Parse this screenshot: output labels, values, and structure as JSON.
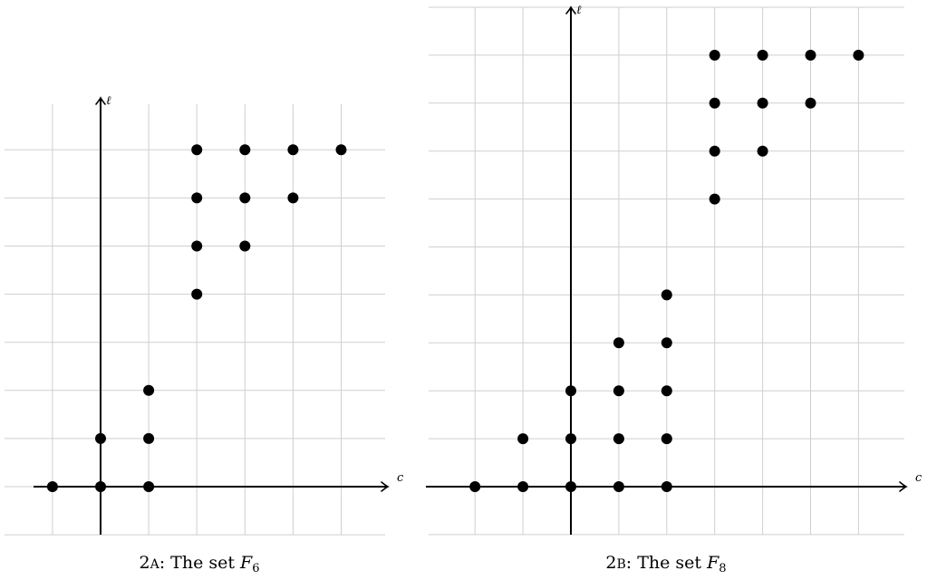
{
  "chart_data": [
    {
      "type": "scatter",
      "caption": {
        "prefix": "2",
        "tag": "A",
        "text": ": The set ",
        "set": "F",
        "sub": "6"
      },
      "xlabel": "c",
      "ylabel": "ℓ",
      "xlim": [
        -1,
        6
      ],
      "ylim": [
        -1,
        8
      ],
      "grid": true,
      "points": [
        [
          -1,
          0
        ],
        [
          0,
          0
        ],
        [
          1,
          0
        ],
        [
          0,
          1
        ],
        [
          1,
          1
        ],
        [
          1,
          2
        ],
        [
          2,
          4
        ],
        [
          2,
          5
        ],
        [
          3,
          5
        ],
        [
          2,
          6
        ],
        [
          3,
          6
        ],
        [
          4,
          6
        ],
        [
          2,
          7
        ],
        [
          3,
          7
        ],
        [
          4,
          7
        ],
        [
          5,
          7
        ]
      ]
    },
    {
      "type": "scatter",
      "caption": {
        "prefix": "2",
        "tag": "B",
        "text": ": The set ",
        "set": "F",
        "sub": "8"
      },
      "xlabel": "c",
      "ylabel": "ℓ",
      "xlim": [
        -2,
        7
      ],
      "ylim": [
        -1,
        10
      ],
      "grid": true,
      "points": [
        [
          -2,
          0
        ],
        [
          -1,
          0
        ],
        [
          0,
          0
        ],
        [
          1,
          0
        ],
        [
          2,
          0
        ],
        [
          -1,
          1
        ],
        [
          0,
          1
        ],
        [
          1,
          1
        ],
        [
          2,
          1
        ],
        [
          0,
          2
        ],
        [
          1,
          2
        ],
        [
          2,
          2
        ],
        [
          1,
          3
        ],
        [
          2,
          3
        ],
        [
          2,
          4
        ],
        [
          3,
          6
        ],
        [
          3,
          7
        ],
        [
          4,
          7
        ],
        [
          3,
          8
        ],
        [
          4,
          8
        ],
        [
          5,
          8
        ],
        [
          3,
          9
        ],
        [
          4,
          9
        ],
        [
          5,
          9
        ],
        [
          6,
          9
        ]
      ]
    }
  ]
}
